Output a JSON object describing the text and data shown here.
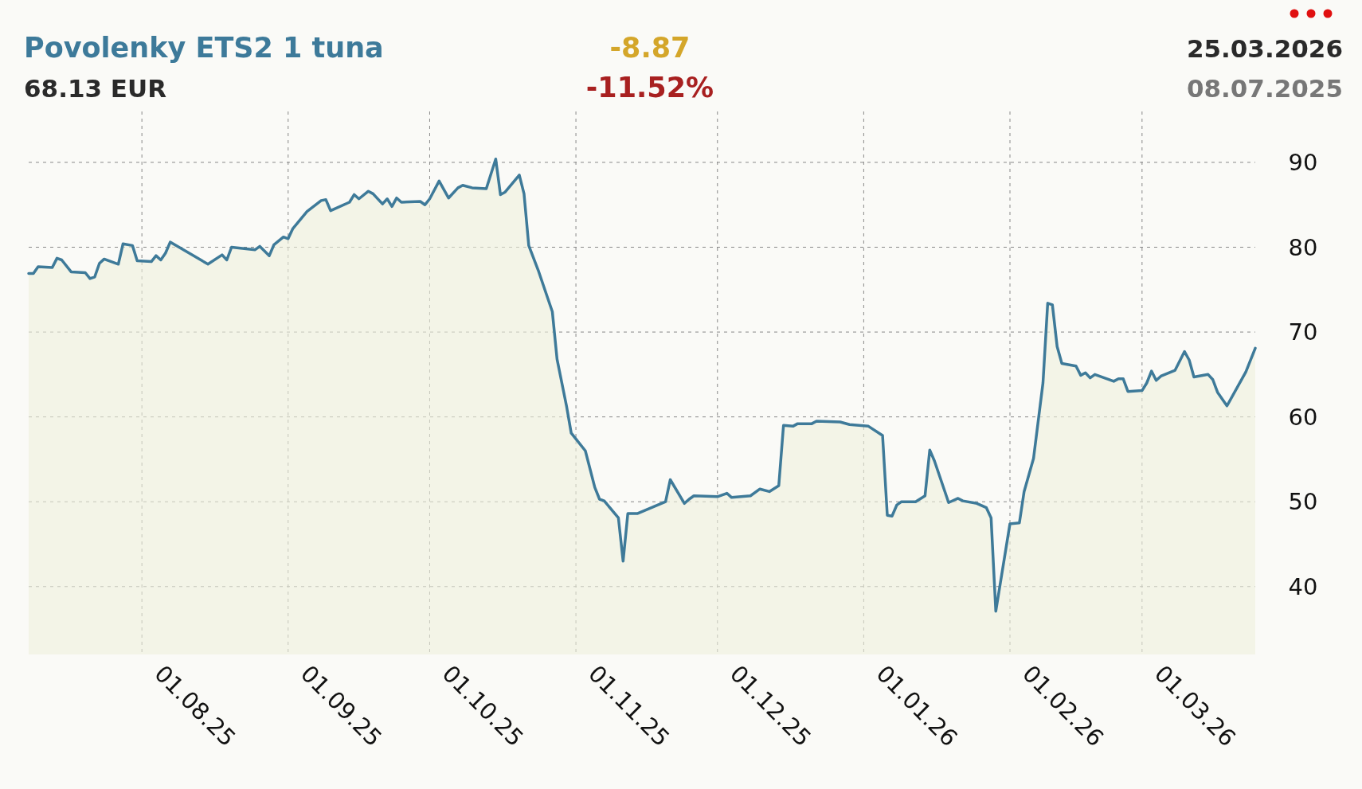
{
  "chart_data": {
    "type": "area",
    "title": "Povolenky ETS2 1 tuna",
    "subtitle": "68.13 EUR",
    "annotations": [
      "-8.87",
      "-11.52%",
      "25.03.2026",
      "08.07.2025"
    ],
    "x": [
      "2025-07-08",
      "2025-07-09",
      "2025-07-10",
      "2025-07-13",
      "2025-07-14",
      "2025-07-15",
      "2025-07-17",
      "2025-07-20",
      "2025-07-21",
      "2025-07-22",
      "2025-07-23",
      "2025-07-24",
      "2025-07-27",
      "2025-07-28",
      "2025-07-30",
      "2025-07-31",
      "2025-08-03",
      "2025-08-04",
      "2025-08-05",
      "2025-08-06",
      "2025-08-07",
      "2025-08-15",
      "2025-08-18",
      "2025-08-19",
      "2025-08-20",
      "2025-08-25",
      "2025-08-26",
      "2025-08-28",
      "2025-08-29",
      "2025-08-31",
      "2025-09-01",
      "2025-09-02",
      "2025-09-05",
      "2025-09-08",
      "2025-09-09",
      "2025-09-10",
      "2025-09-14",
      "2025-09-15",
      "2025-09-16",
      "2025-09-18",
      "2025-09-19",
      "2025-09-21",
      "2025-09-22",
      "2025-09-23",
      "2025-09-24",
      "2025-09-25",
      "2025-09-29",
      "2025-09-30",
      "2025-10-01",
      "2025-10-03",
      "2025-10-05",
      "2025-10-07",
      "2025-10-08",
      "2025-10-10",
      "2025-10-13",
      "2025-10-15",
      "2025-10-16",
      "2025-10-17",
      "2025-10-20",
      "2025-10-21",
      "2025-10-22",
      "2025-10-24",
      "2025-10-27",
      "2025-10-28",
      "2025-10-30",
      "2025-10-31",
      "2025-11-03",
      "2025-11-05",
      "2025-11-06",
      "2025-11-07",
      "2025-11-10",
      "2025-11-11",
      "2025-11-12",
      "2025-11-14",
      "2025-11-20",
      "2025-11-21",
      "2025-11-24",
      "2025-11-25",
      "2025-11-26",
      "2025-12-01",
      "2025-12-03",
      "2025-12-04",
      "2025-12-08",
      "2025-12-10",
      "2025-12-12",
      "2025-12-14",
      "2025-12-15",
      "2025-12-17",
      "2025-12-18",
      "2025-12-21",
      "2025-12-22",
      "2025-12-27",
      "2025-12-29",
      "2026-01-02",
      "2026-01-05",
      "2026-01-06",
      "2026-01-07",
      "2026-01-08",
      "2026-01-09",
      "2026-01-12",
      "2026-01-14",
      "2026-01-15",
      "2026-01-16",
      "2026-01-19",
      "2026-01-21",
      "2026-01-22",
      "2026-01-25",
      "2026-01-27",
      "2026-01-28",
      "2026-01-29",
      "2026-02-01",
      "2026-02-03",
      "2026-02-04",
      "2026-02-06",
      "2026-02-08",
      "2026-02-09",
      "2026-02-10",
      "2026-02-11",
      "2026-02-12",
      "2026-02-15",
      "2026-02-16",
      "2026-02-17",
      "2026-02-18",
      "2026-02-19",
      "2026-02-23",
      "2026-02-24",
      "2026-02-25",
      "2026-02-26",
      "2026-03-01",
      "2026-03-02",
      "2026-03-03",
      "2026-03-04",
      "2026-03-05",
      "2026-03-08",
      "2026-03-10",
      "2026-03-11",
      "2026-03-12",
      "2026-03-15",
      "2026-03-16",
      "2026-03-17",
      "2026-03-19",
      "2026-03-23",
      "2026-03-25"
    ],
    "series": [
      {
        "color": "#3e7a99",
        "values": [
          76.9,
          76.9,
          77.7,
          77.6,
          78.7,
          78.5,
          77.1,
          77.0,
          76.3,
          76.5,
          78.1,
          78.6,
          78.0,
          80.4,
          80.2,
          78.4,
          78.3,
          79.0,
          78.5,
          79.3,
          80.6,
          78.0,
          79.1,
          78.5,
          80.0,
          79.7,
          80.1,
          79.0,
          80.3,
          81.2,
          81.0,
          82.2,
          84.2,
          85.5,
          85.6,
          84.3,
          85.3,
          86.2,
          85.7,
          86.6,
          86.3,
          85.1,
          85.7,
          84.8,
          85.8,
          85.3,
          85.4,
          85.0,
          85.7,
          87.8,
          85.8,
          87.0,
          87.3,
          87.0,
          86.9,
          90.4,
          86.2,
          86.5,
          88.5,
          86.3,
          80.2,
          77.3,
          72.4,
          66.8,
          61.3,
          58.1,
          56.0,
          51.7,
          50.3,
          50.1,
          48.1,
          43.0,
          48.6,
          48.6,
          50.0,
          52.6,
          49.8,
          50.3,
          50.7,
          50.6,
          51.0,
          50.5,
          50.7,
          51.5,
          51.2,
          51.9,
          59.0,
          58.9,
          59.2,
          59.2,
          59.5,
          59.4,
          59.1,
          58.9,
          57.8,
          48.4,
          48.3,
          49.6,
          50.0,
          50.0,
          50.7,
          56.1,
          54.8,
          49.9,
          50.4,
          50.1,
          49.8,
          49.3,
          48.1,
          37.1,
          47.4,
          47.5,
          51.2,
          55.1,
          64.0,
          73.4,
          73.2,
          68.3,
          66.3,
          66.0,
          64.9,
          65.2,
          64.6,
          65.0,
          64.2,
          64.5,
          64.5,
          63.0,
          63.1,
          64.0,
          65.4,
          64.3,
          64.8,
          65.5,
          67.7,
          66.7,
          64.7,
          65.0,
          64.4,
          62.9,
          61.3,
          65.3,
          68.1
        ]
      }
    ],
    "xlim": [
      "2025-07-08",
      "2026-03-25"
    ],
    "xticks": [
      {
        "value": "2025-08-01",
        "label": "01.08.25"
      },
      {
        "value": "2025-09-01",
        "label": "01.09.25"
      },
      {
        "value": "2025-10-01",
        "label": "01.10.25"
      },
      {
        "value": "2025-11-01",
        "label": "01.11.25"
      },
      {
        "value": "2025-12-01",
        "label": "01.12.25"
      },
      {
        "value": "2026-01-01",
        "label": "01.01.26"
      },
      {
        "value": "2026-02-01",
        "label": "01.02.26"
      },
      {
        "value": "2026-03-01",
        "label": "01.03.26"
      }
    ],
    "ylim": [
      32,
      96
    ],
    "yticks": [
      40,
      50,
      60,
      70,
      80,
      90
    ],
    "grid": true
  }
}
